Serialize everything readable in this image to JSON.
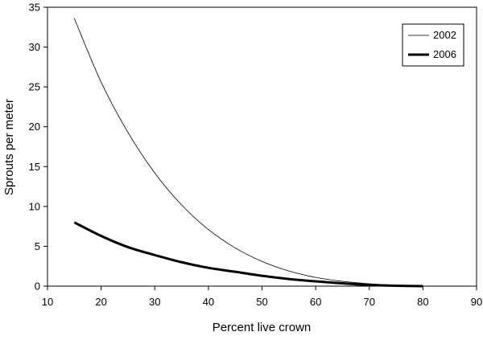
{
  "chart_data": {
    "type": "line",
    "title": "",
    "xlabel": "Percent live crown",
    "ylabel": "Sprouts per meter",
    "xlim": [
      10,
      90
    ],
    "ylim": [
      0,
      35
    ],
    "xticks": [
      10,
      20,
      30,
      40,
      50,
      60,
      70,
      80,
      90
    ],
    "yticks": [
      0,
      5,
      10,
      15,
      20,
      25,
      30,
      35
    ],
    "grid": false,
    "legend_position": "top-right",
    "series": [
      {
        "name": "2002",
        "line_style": "thin",
        "color": "#000000",
        "x": [
          15,
          20,
          25,
          30,
          35,
          40,
          45,
          50,
          55,
          60,
          65,
          70,
          75,
          80,
          85
        ],
        "y": [
          33.6,
          25.6,
          19.3,
          14.2,
          10.2,
          7.1,
          4.8,
          3.1,
          1.9,
          1.1,
          0.6,
          0.3,
          0.1,
          0.0,
          0.0
        ]
      },
      {
        "name": "2006",
        "line_style": "thick",
        "color": "#000000",
        "x": [
          15,
          20,
          25,
          30,
          35,
          40,
          45,
          50,
          55,
          60,
          65,
          70,
          75,
          80
        ],
        "y": [
          8.0,
          6.3,
          4.9,
          3.9,
          3.0,
          2.3,
          1.8,
          1.3,
          0.9,
          0.6,
          0.35,
          0.15,
          0.05,
          0.0
        ]
      }
    ]
  }
}
